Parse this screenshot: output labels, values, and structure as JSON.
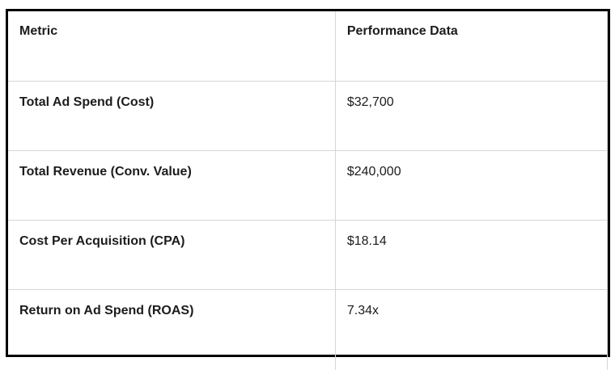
{
  "table": {
    "headers": {
      "metric": "Metric",
      "value": "Performance Data"
    },
    "rows": [
      {
        "metric": "Total Ad Spend (Cost)",
        "value": "$32,700"
      },
      {
        "metric": "Total Revenue (Conv. Value)",
        "value": "$240,000"
      },
      {
        "metric": "Cost Per Acquisition (CPA)",
        "value": "$18.14"
      },
      {
        "metric": "Return on Ad Spend (ROAS)",
        "value": "7.34x"
      }
    ]
  },
  "colors": {
    "border_outer": "#000000",
    "border_inner": "#d6d6d6",
    "text": "#1c1c1c",
    "background": "#ffffff"
  }
}
